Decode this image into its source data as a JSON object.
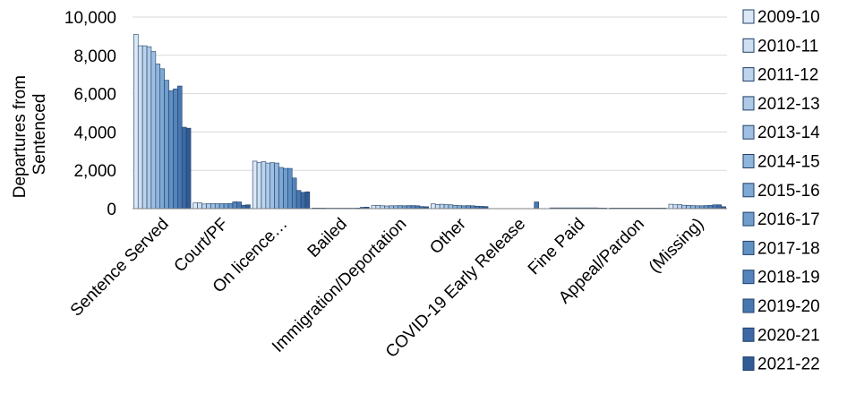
{
  "chart_data": {
    "type": "bar",
    "title": "",
    "xlabel": "",
    "ylabel_lines": [
      "Departures from",
      "Sentenced"
    ],
    "ylim": [
      0,
      10000
    ],
    "yticks": [
      0,
      2000,
      4000,
      6000,
      8000,
      10000
    ],
    "ytick_labels": [
      "0",
      "2,000",
      "4,000",
      "6,000",
      "8,000",
      "10,000"
    ],
    "grid": true,
    "legend_position": "right",
    "categories": [
      "Sentence Served",
      "Court/PF",
      "On licence…",
      "Bailed",
      "Immigration/Deportation",
      "Other",
      "COVID-19 Early Release",
      "Fine Paid",
      "Appeal/Pardon",
      "(Missing)"
    ],
    "series": [
      {
        "name": "2009-10",
        "color": "#dce8f5",
        "values": [
          9100,
          300,
          2480,
          30,
          160,
          250,
          0,
          40,
          30,
          230
        ]
      },
      {
        "name": "2010-11",
        "color": "#cddff1",
        "values": [
          8500,
          300,
          2400,
          30,
          170,
          220,
          0,
          40,
          30,
          200
        ]
      },
      {
        "name": "2011-12",
        "color": "#bdd4ec",
        "values": [
          8500,
          240,
          2450,
          30,
          150,
          230,
          0,
          40,
          30,
          210
        ]
      },
      {
        "name": "2012-13",
        "color": "#aecae7",
        "values": [
          8450,
          260,
          2380,
          25,
          140,
          210,
          0,
          40,
          30,
          180
        ]
      },
      {
        "name": "2013-14",
        "color": "#9fc0e2",
        "values": [
          8200,
          260,
          2400,
          25,
          150,
          200,
          0,
          40,
          30,
          170
        ]
      },
      {
        "name": "2014-15",
        "color": "#8fb5dc",
        "values": [
          7550,
          260,
          2380,
          25,
          150,
          170,
          0,
          40,
          30,
          160
        ]
      },
      {
        "name": "2015-16",
        "color": "#7ea9d5",
        "values": [
          7300,
          260,
          2150,
          25,
          160,
          160,
          0,
          40,
          30,
          150
        ]
      },
      {
        "name": "2016-17",
        "color": "#6f9dcd",
        "values": [
          6700,
          260,
          2100,
          25,
          150,
          150,
          0,
          40,
          30,
          150
        ]
      },
      {
        "name": "2017-18",
        "color": "#6191c4",
        "values": [
          6150,
          270,
          2100,
          25,
          160,
          160,
          0,
          40,
          30,
          160
        ]
      },
      {
        "name": "2018-19",
        "color": "#5484bb",
        "values": [
          6250,
          360,
          1600,
          25,
          160,
          150,
          0,
          40,
          30,
          170
        ]
      },
      {
        "name": "2019-20",
        "color": "#4877b0",
        "values": [
          6400,
          350,
          950,
          30,
          150,
          130,
          350,
          40,
          30,
          200
        ]
      },
      {
        "name": "2020-21",
        "color": "#3c69a3",
        "values": [
          4250,
          180,
          850,
          70,
          110,
          120,
          0,
          30,
          30,
          200
        ]
      },
      {
        "name": "2021-22",
        "color": "#305b94",
        "values": [
          4200,
          200,
          880,
          80,
          100,
          110,
          0,
          30,
          30,
          100
        ]
      }
    ]
  }
}
